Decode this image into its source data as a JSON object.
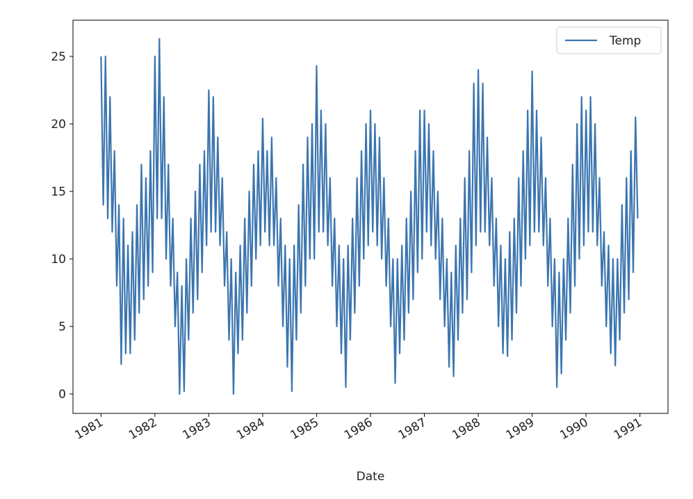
{
  "chart_data": {
    "type": "line",
    "x_label": "Date",
    "x": [
      1981,
      1981.042,
      1981.083,
      1981.125,
      1981.167,
      1981.208,
      1981.25,
      1981.292,
      1981.333,
      1981.375,
      1981.417,
      1981.458,
      1981.5,
      1981.542,
      1981.583,
      1981.625,
      1981.667,
      1981.708,
      1981.75,
      1981.792,
      1981.833,
      1981.875,
      1981.917,
      1981.958,
      1982,
      1982.042,
      1982.083,
      1982.125,
      1982.167,
      1982.208,
      1982.25,
      1982.292,
      1982.333,
      1982.375,
      1982.417,
      1982.458,
      1982.5,
      1982.542,
      1982.583,
      1982.625,
      1982.667,
      1982.708,
      1982.75,
      1982.792,
      1982.833,
      1982.875,
      1982.917,
      1982.958,
      1983,
      1983.042,
      1983.083,
      1983.125,
      1983.167,
      1983.208,
      1983.25,
      1983.292,
      1983.333,
      1983.375,
      1983.417,
      1983.458,
      1983.5,
      1983.542,
      1983.583,
      1983.625,
      1983.667,
      1983.708,
      1983.75,
      1983.792,
      1983.833,
      1983.875,
      1983.917,
      1983.958,
      1984,
      1984.042,
      1984.083,
      1984.125,
      1984.167,
      1984.208,
      1984.25,
      1984.292,
      1984.333,
      1984.375,
      1984.417,
      1984.458,
      1984.5,
      1984.542,
      1984.583,
      1984.625,
      1984.667,
      1984.708,
      1984.75,
      1984.792,
      1984.833,
      1984.875,
      1984.917,
      1984.958,
      1985,
      1985.042,
      1985.083,
      1985.125,
      1985.167,
      1985.208,
      1985.25,
      1985.292,
      1985.333,
      1985.375,
      1985.417,
      1985.458,
      1985.5,
      1985.542,
      1985.583,
      1985.625,
      1985.667,
      1985.708,
      1985.75,
      1985.792,
      1985.833,
      1985.875,
      1985.917,
      1985.958,
      1986,
      1986.042,
      1986.083,
      1986.125,
      1986.167,
      1986.208,
      1986.25,
      1986.292,
      1986.333,
      1986.375,
      1986.417,
      1986.458,
      1986.5,
      1986.542,
      1986.583,
      1986.625,
      1986.667,
      1986.708,
      1986.75,
      1986.792,
      1986.833,
      1986.875,
      1986.917,
      1986.958,
      1987,
      1987.042,
      1987.083,
      1987.125,
      1987.167,
      1987.208,
      1987.25,
      1987.292,
      1987.333,
      1987.375,
      1987.417,
      1987.458,
      1987.5,
      1987.542,
      1987.583,
      1987.625,
      1987.667,
      1987.708,
      1987.75,
      1987.792,
      1987.833,
      1987.875,
      1987.917,
      1987.958,
      1988,
      1988.042,
      1988.083,
      1988.125,
      1988.167,
      1988.208,
      1988.25,
      1988.292,
      1988.333,
      1988.375,
      1988.417,
      1988.458,
      1988.5,
      1988.542,
      1988.583,
      1988.625,
      1988.667,
      1988.708,
      1988.75,
      1988.792,
      1988.833,
      1988.875,
      1988.917,
      1988.958,
      1989,
      1989.042,
      1989.083,
      1989.125,
      1989.167,
      1989.208,
      1989.25,
      1989.292,
      1989.333,
      1989.375,
      1989.417,
      1989.458,
      1989.5,
      1989.542,
      1989.583,
      1989.625,
      1989.667,
      1989.708,
      1989.75,
      1989.792,
      1989.833,
      1989.875,
      1989.917,
      1989.958,
      1990,
      1990.042,
      1990.083,
      1990.125,
      1990.167,
      1990.208,
      1990.25,
      1990.292,
      1990.333,
      1990.375,
      1990.417,
      1990.458,
      1990.5,
      1990.542,
      1990.583,
      1990.625,
      1990.667,
      1990.708,
      1990.75,
      1990.792,
      1990.833,
      1990.875,
      1990.917,
      1990.958
    ],
    "series": [
      {
        "name": "Temp",
        "color": "#3b75af",
        "values": [
          25,
          14,
          25,
          13,
          22,
          12,
          18,
          8,
          14,
          2.2,
          13,
          3,
          11,
          3,
          12,
          4,
          14,
          6,
          17,
          7,
          16,
          8,
          18,
          9,
          25,
          13,
          26.3,
          13,
          22,
          10,
          17,
          8,
          13,
          5,
          9,
          0,
          8,
          0.2,
          10,
          4,
          13,
          6,
          15,
          7,
          17,
          9,
          18,
          11,
          22.5,
          12,
          22,
          12,
          19,
          11,
          16,
          8,
          12,
          4,
          10,
          0,
          9,
          3,
          11,
          4,
          13,
          6,
          15,
          8,
          17,
          10,
          18,
          11,
          20.4,
          12,
          18,
          11,
          19,
          11,
          16,
          8,
          13,
          5,
          11,
          2,
          10,
          0.2,
          11,
          4,
          14,
          6,
          17,
          8,
          19,
          10,
          20,
          10,
          24.3,
          12,
          21,
          12,
          20,
          11,
          16,
          8,
          13,
          5,
          11,
          3,
          10,
          0.5,
          11,
          4,
          13,
          6,
          16,
          8,
          18,
          10,
          20,
          11,
          21,
          12,
          20,
          11,
          19,
          10,
          16,
          8,
          13,
          5,
          10,
          0.8,
          10,
          3,
          11,
          4,
          13,
          6,
          15,
          7,
          18,
          9,
          21,
          10,
          21,
          12,
          20,
          11,
          18,
          10,
          15,
          7,
          13,
          5,
          10,
          2,
          9,
          1.3,
          11,
          4,
          13,
          6,
          16,
          7,
          18,
          9,
          23,
          11,
          24,
          12,
          23,
          12,
          19,
          11,
          16,
          8,
          13,
          5,
          11,
          3,
          10,
          2.8,
          12,
          4,
          13,
          6,
          16,
          8,
          18,
          10,
          21,
          11,
          23.9,
          12,
          21,
          12,
          19,
          11,
          16,
          8,
          13,
          5,
          10,
          0.5,
          9,
          1.5,
          10,
          4,
          13,
          6,
          17,
          8,
          20,
          10,
          22,
          11,
          21,
          12,
          22,
          12,
          20,
          11,
          16,
          8,
          12,
          5,
          11,
          3,
          10,
          2.1,
          10,
          4,
          14,
          6,
          16,
          7,
          18,
          9,
          20.5,
          13
        ]
      }
    ],
    "xlim": [
      1980.48,
      1991.52
    ],
    "xticks": [
      1981,
      1982,
      1983,
      1984,
      1985,
      1986,
      1987,
      1988,
      1989,
      1990,
      1991
    ],
    "ylim": [
      -1.44,
      27.68
    ],
    "yticks": [
      0,
      5,
      10,
      15,
      20,
      25
    ],
    "grid": false,
    "legend": "upper right"
  }
}
